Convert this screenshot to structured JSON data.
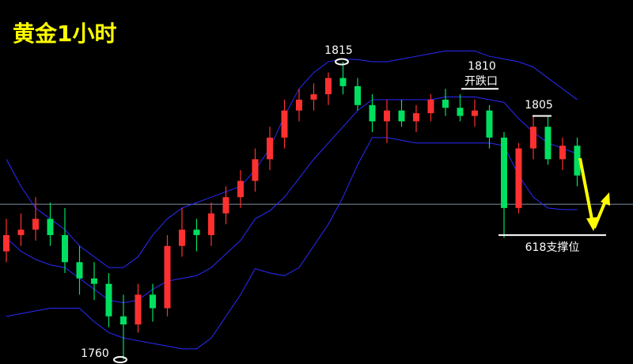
{
  "chart_data": {
    "type": "candlestick",
    "title": "黄金1小时",
    "ylim": [
      1759.2,
      1826.4
    ],
    "up_color": "#ff3030",
    "down_color": "#00e060",
    "open": [
      1780,
      1783,
      1784,
      1786,
      1783,
      1778,
      1775,
      1774,
      1768,
      1766.5,
      1772,
      1769.5,
      1781,
      1784,
      1783,
      1787,
      1790,
      1793,
      1797,
      1801,
      1806,
      1808,
      1809,
      1812,
      1810.5,
      1807,
      1804,
      1806,
      1804,
      1805.5,
      1808,
      1806.5,
      1805,
      1806,
      1801,
      1788,
      1799,
      1803,
      1797,
      1799.5
    ],
    "high": [
      1786,
      1787,
      1790,
      1789,
      1788,
      1781,
      1778,
      1776,
      1772,
      1774,
      1774,
      1783,
      1788,
      1786,
      1789,
      1792,
      1795,
      1799,
      1803,
      1808,
      1810,
      1811,
      1813,
      1815,
      1812,
      1809,
      1808,
      1808,
      1807,
      1809,
      1810,
      1809,
      1808,
      1807,
      1802,
      1800,
      1805,
      1805,
      1801,
      1801
    ],
    "low": [
      1778,
      1781,
      1782,
      1781,
      1776,
      1772,
      1771,
      1766,
      1760,
      1765,
      1767,
      1768,
      1779,
      1780,
      1781,
      1785,
      1788,
      1791,
      1795,
      1799,
      1804,
      1806,
      1807,
      1809,
      1806,
      1802,
      1800,
      1803,
      1802,
      1804,
      1805,
      1804,
      1803,
      1799,
      1782.5,
      1787,
      1797,
      1796,
      1795,
      1792
    ],
    "close": [
      1783,
      1784,
      1786,
      1783,
      1778,
      1775,
      1774,
      1768,
      1766.5,
      1772,
      1769.5,
      1781,
      1784,
      1783,
      1787,
      1790,
      1793,
      1797,
      1801,
      1806,
      1808,
      1809,
      1812,
      1810.5,
      1807,
      1804,
      1806,
      1804,
      1805.5,
      1808,
      1806.5,
      1805,
      1806,
      1801,
      1788,
      1799,
      1803,
      1797,
      1799.5,
      1794
    ],
    "bands": [
      {
        "color": "#2a2aff",
        "values": [
          1797,
          1792,
          1788,
          1786,
          1784,
          1781,
          1779,
          1777,
          1777,
          1779,
          1783,
          1786,
          1788,
          1789,
          1790,
          1791,
          1792,
          1795,
          1799,
          1805,
          1810,
          1813,
          1815,
          1815.5,
          1815.4,
          1815,
          1815,
          1815.5,
          1816,
          1816.5,
          1817,
          1817,
          1817,
          1816,
          1815.5,
          1815,
          1814,
          1812,
          1810,
          1808
        ]
      },
      {
        "color": "#2a2aff",
        "values": [
          1782.5,
          1780,
          1778.5,
          1777.5,
          1777,
          1775,
          1773,
          1771,
          1770.5,
          1771,
          1773,
          1774.5,
          1775,
          1775.5,
          1777,
          1779.5,
          1782,
          1786,
          1787.5,
          1790,
          1793.5,
          1797,
          1800,
          1803,
          1806,
          1808,
          1808,
          1808,
          1808,
          1808,
          1808.5,
          1808.5,
          1808.5,
          1808,
          1807.5,
          1804.5,
          1802,
          1800,
          1799,
          1798
        ]
      },
      {
        "color": "#2a2aff",
        "values": [
          1768,
          1768.5,
          1769,
          1769.5,
          1769.5,
          1769.5,
          1767,
          1765,
          1764,
          1763.5,
          1763,
          1762.5,
          1762,
          1762,
          1764,
          1768,
          1772,
          1776.8,
          1776,
          1775.5,
          1777,
          1781,
          1785,
          1790,
          1796,
          1801,
          1801,
          1800.5,
          1800,
          1800,
          1800,
          1800,
          1800,
          1800,
          1799.5,
          1794,
          1790,
          1788,
          1787.7,
          1787.7
        ]
      }
    ],
    "reference_level": 1788.7,
    "marked_prices": [
      1815,
      1810,
      1805,
      1760
    ],
    "annotations": [
      "开跌口",
      "618支撑位"
    ],
    "support_level": 1783
  }
}
